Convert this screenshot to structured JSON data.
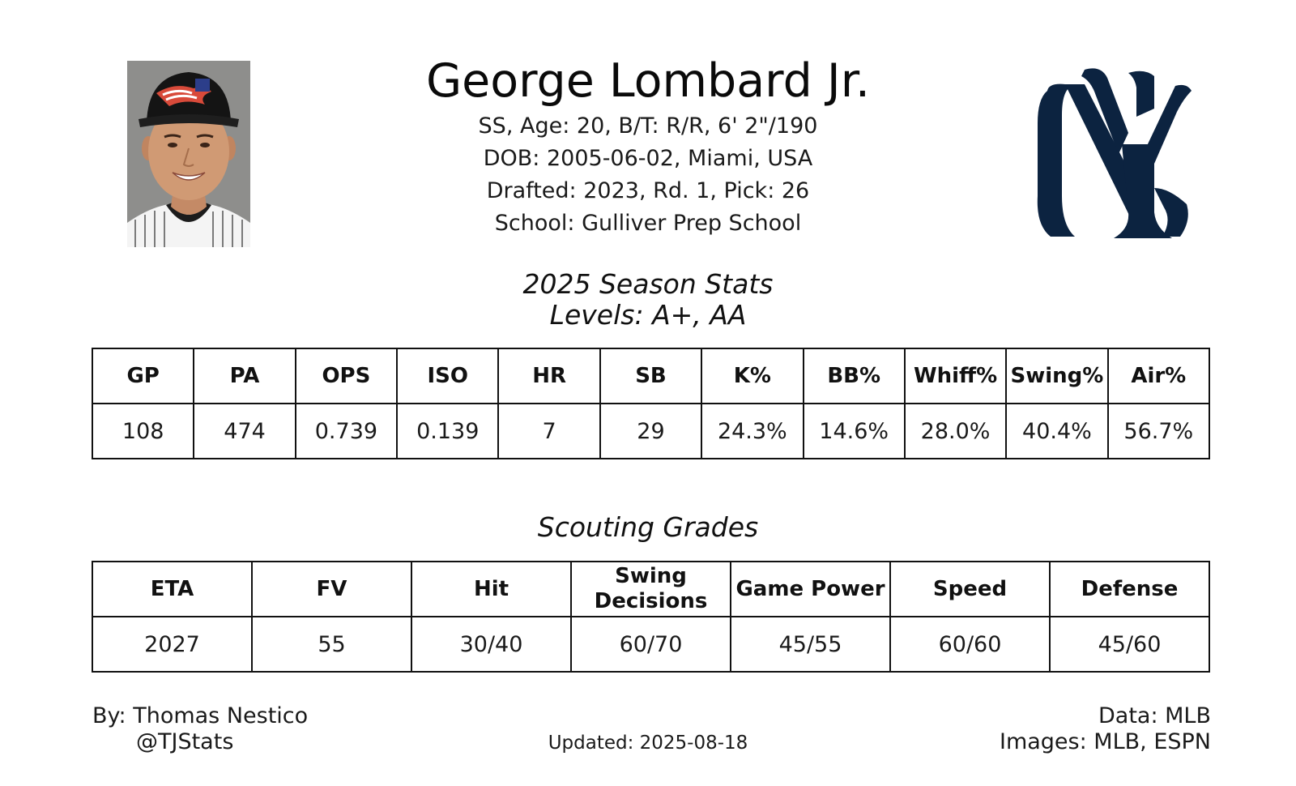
{
  "player": {
    "name": "George Lombard Jr.",
    "bio_line": "SS, Age: 20, B/T: R/R, 6' 2\"/190",
    "dob_line": "DOB: 2005-06-02, Miami, USA",
    "draft_line": "Drafted: 2023, Rd. 1, Pick: 26",
    "school_line": "School: Gulliver Prep School",
    "photo_icon": "player-headshot",
    "team_logo_icon": "new-york-yankees-logo",
    "team_color": "#0c2340"
  },
  "season": {
    "title": "2025 Season Stats",
    "levels": "Levels: A+, AA",
    "headers": [
      "GP",
      "PA",
      "OPS",
      "ISO",
      "HR",
      "SB",
      "K%",
      "BB%",
      "Whiff%",
      "Swing%",
      "Air%"
    ],
    "values": [
      "108",
      "474",
      "0.739",
      "0.139",
      "7",
      "29",
      "24.3%",
      "14.6%",
      "28.0%",
      "40.4%",
      "56.7%"
    ]
  },
  "scouting": {
    "title": "Scouting Grades",
    "headers": [
      "ETA",
      "FV",
      "Hit",
      "Swing Decisions",
      "Game Power",
      "Speed",
      "Defense"
    ],
    "values": [
      "2027",
      "55",
      "30/40",
      "60/70",
      "45/55",
      "60/60",
      "45/60"
    ]
  },
  "footer": {
    "author": "By: Thomas Nestico",
    "handle": "@TJStats",
    "updated": "Updated: 2025-08-18",
    "data_source": "Data: MLB",
    "images_source": "Images: MLB, ESPN"
  }
}
